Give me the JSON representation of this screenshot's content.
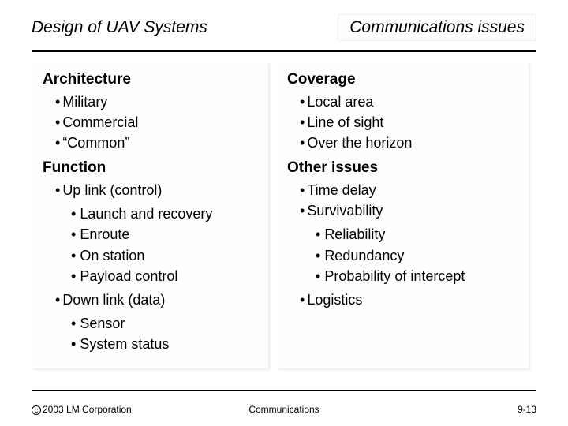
{
  "header": {
    "title_left": "Design of UAV Systems",
    "title_right": "Communications issues"
  },
  "left_column": {
    "sections": [
      {
        "heading": "Architecture",
        "items": [
          {
            "text": "Military"
          },
          {
            "text": "Commercial"
          },
          {
            "text": "“Common”"
          }
        ]
      },
      {
        "heading": "Function",
        "items": [
          {
            "text": "Up link (control)",
            "sub": [
              "Launch and recovery",
              "Enroute",
              "On station",
              "Payload control"
            ]
          },
          {
            "text": "Down link (data)",
            "sub": [
              "Sensor",
              "System status"
            ]
          }
        ]
      }
    ]
  },
  "right_column": {
    "sections": [
      {
        "heading": "Coverage",
        "items": [
          {
            "text": "Local area"
          },
          {
            "text": "Line of sight"
          },
          {
            "text": "Over the horizon"
          }
        ]
      },
      {
        "heading": "Other issues",
        "items": [
          {
            "text": "Time delay"
          },
          {
            "text": "Survivability",
            "sub": [
              "Reliability",
              "Redundancy",
              "Probability of intercept"
            ]
          },
          {
            "text": "Logistics"
          }
        ]
      }
    ]
  },
  "footer": {
    "copyright": "2003 LM Corporation",
    "center": "Communications",
    "page": "9-13"
  },
  "style": {
    "background_color": "#ffffff",
    "panel_color": "#fefefe",
    "text_color": "#000000",
    "rule_color": "#000000",
    "title_fontsize_pt": 16,
    "heading_fontsize_pt": 14,
    "body_fontsize_pt": 13,
    "footer_fontsize_pt": 9,
    "title_font_style": "italic",
    "heading_font_weight": "bold"
  }
}
